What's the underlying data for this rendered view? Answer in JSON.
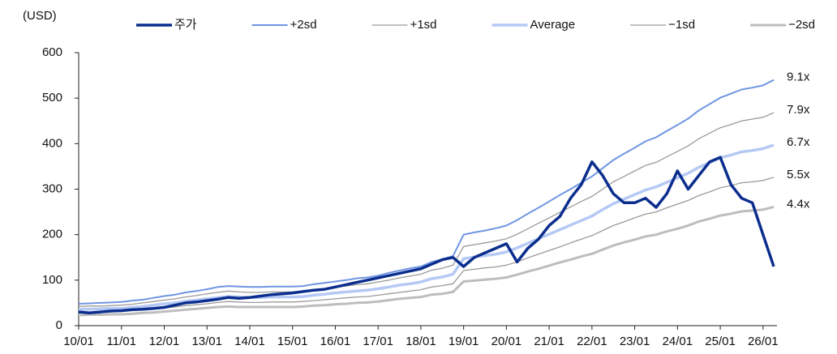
{
  "chart_data": {
    "type": "line",
    "y_unit": "(USD)",
    "categories": [
      "10/01",
      null,
      null,
      null,
      "11/01",
      null,
      null,
      null,
      "12/01",
      null,
      null,
      null,
      "13/01",
      null,
      null,
      null,
      "14/01",
      null,
      null,
      null,
      "15/01",
      null,
      null,
      null,
      "16/01",
      null,
      null,
      null,
      "17/01",
      null,
      null,
      null,
      "18/01",
      null,
      null,
      null,
      "19/01",
      null,
      null,
      null,
      "20/01",
      null,
      null,
      null,
      "21/01",
      null,
      null,
      null,
      "22/01",
      null,
      null,
      null,
      "23/01",
      null,
      null,
      null,
      "24/01",
      null,
      null,
      null,
      "25/01",
      null,
      null,
      null,
      "26/01",
      null
    ],
    "ylim": [
      0,
      600
    ],
    "yticks": [
      0,
      100,
      200,
      300,
      400,
      500,
      600
    ],
    "series": [
      {
        "name": "주가",
        "color": "#0b2e8e",
        "width": 3.5,
        "values": [
          30,
          28,
          30,
          32,
          33,
          35,
          36,
          38,
          40,
          45,
          50,
          52,
          55,
          58,
          62,
          60,
          62,
          65,
          68,
          70,
          72,
          75,
          78,
          80,
          85,
          90,
          95,
          100,
          105,
          110,
          115,
          120,
          125,
          135,
          145,
          150,
          130,
          150,
          160,
          170,
          180,
          140,
          170,
          190,
          220,
          240,
          280,
          310,
          360,
          330,
          290,
          270,
          270,
          280,
          260,
          290,
          340,
          300,
          330,
          360,
          370,
          310,
          280,
          270,
          200,
          130
        ]
      },
      {
        "name": "+2sd",
        "color": "#6f95e2",
        "width": 2,
        "label": "9.1x",
        "values": [
          48,
          49,
          50,
          51,
          52,
          55,
          57,
          61,
          65,
          68,
          73,
          76,
          80,
          85,
          87,
          86,
          85,
          85,
          86,
          86,
          86,
          87,
          91,
          94,
          97,
          100,
          104,
          106,
          110,
          116,
          121,
          126,
          130,
          140,
          146,
          153,
          200,
          205,
          209,
          214,
          220,
          232,
          246,
          259,
          273,
          287,
          300,
          314,
          328,
          346,
          364,
          378,
          391,
          405,
          414,
          428,
          441,
          455,
          473,
          487,
          501,
          510,
          519,
          523,
          528,
          540
        ]
      },
      {
        "name": "+1sd",
        "color": "#9a9a9a",
        "width": 1.3,
        "label": "7.9x",
        "values": [
          42,
          43,
          43,
          44,
          45,
          47,
          50,
          53,
          56,
          59,
          63,
          66,
          70,
          73,
          76,
          74,
          73,
          73,
          74,
          74,
          74,
          76,
          79,
          81,
          85,
          87,
          90,
          92,
          96,
          100,
          105,
          109,
          113,
          122,
          126,
          133,
          174,
          178,
          182,
          186,
          191,
          201,
          213,
          225,
          237,
          249,
          261,
          273,
          284,
          300,
          316,
          328,
          340,
          352,
          359,
          371,
          383,
          395,
          411,
          423,
          435,
          442,
          450,
          454,
          458,
          468
        ]
      },
      {
        "name": "Average",
        "color": "#b5c9f5",
        "width": 3.5,
        "label": "6.7x",
        "values": [
          36,
          36,
          37,
          38,
          38,
          40,
          42,
          45,
          48,
          50,
          54,
          56,
          59,
          62,
          64,
          63,
          62,
          62,
          63,
          63,
          63,
          64,
          67,
          69,
          72,
          74,
          76,
          78,
          81,
          85,
          89,
          92,
          96,
          103,
          107,
          113,
          147,
          151,
          154,
          157,
          162,
          171,
          181,
          191,
          201,
          211,
          221,
          231,
          241,
          255,
          268,
          278,
          288,
          298,
          305,
          315,
          325,
          335,
          348,
          358,
          369,
          375,
          382,
          385,
          389,
          397
        ]
      },
      {
        "name": "−1sd",
        "color": "#9a9a9a",
        "width": 1.3,
        "label": "5.5x",
        "values": [
          29,
          30,
          30,
          31,
          31,
          33,
          35,
          37,
          39,
          41,
          44,
          46,
          48,
          51,
          53,
          52,
          51,
          51,
          52,
          52,
          52,
          53,
          55,
          57,
          59,
          61,
          63,
          64,
          67,
          70,
          73,
          76,
          79,
          85,
          88,
          92,
          121,
          124,
          127,
          129,
          133,
          140,
          149,
          157,
          165,
          173,
          182,
          190,
          198,
          209,
          220,
          228,
          237,
          245,
          250,
          259,
          267,
          275,
          286,
          294,
          303,
          308,
          314,
          316,
          319,
          326
        ]
      },
      {
        "name": "−2sd",
        "color": "#bdbdbd",
        "width": 3,
        "label": "4.4x",
        "values": [
          23,
          24,
          24,
          25,
          25,
          26,
          28,
          29,
          31,
          33,
          35,
          37,
          39,
          41,
          42,
          41,
          41,
          41,
          41,
          41,
          41,
          42,
          44,
          45,
          47,
          48,
          50,
          51,
          53,
          56,
          59,
          61,
          63,
          68,
          70,
          74,
          97,
          99,
          101,
          103,
          106,
          112,
          119,
          125,
          132,
          139,
          145,
          152,
          158,
          167,
          176,
          183,
          189,
          196,
          200,
          207,
          213,
          220,
          229,
          235,
          242,
          246,
          251,
          253,
          255,
          261
        ]
      }
    ]
  }
}
